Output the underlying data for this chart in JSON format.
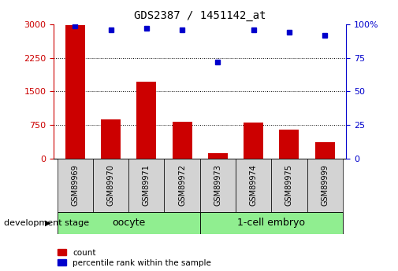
{
  "title": "GDS2387 / 1451142_at",
  "samples": [
    "GSM89969",
    "GSM89970",
    "GSM89971",
    "GSM89972",
    "GSM89973",
    "GSM89974",
    "GSM89975",
    "GSM89999"
  ],
  "counts": [
    2980,
    870,
    1720,
    820,
    120,
    810,
    650,
    360
  ],
  "percentile_ranks": [
    99,
    96,
    97,
    96,
    72,
    96,
    94,
    92
  ],
  "bar_color": "#CC0000",
  "dot_color": "#0000CC",
  "left_yaxis_ticks": [
    0,
    750,
    1500,
    2250,
    3000
  ],
  "left_yaxis_color": "#CC0000",
  "right_yaxis_ticks": [
    0,
    25,
    50,
    75,
    100
  ],
  "right_yaxis_color": "#0000CC",
  "grid_values": [
    750,
    1500,
    2250
  ],
  "stage_label": "development stage",
  "legend_count_label": "count",
  "legend_pct_label": "percentile rank within the sample",
  "bg_color": "#ffffff",
  "label_area_color": "#d3d3d3",
  "group_area_color": "#90EE90",
  "oocyte_label": "oocyte",
  "embryo_label": "1-cell embryo",
  "bar_width": 0.55,
  "title_fontsize": 10,
  "axis_tick_fontsize": 8,
  "sample_fontsize": 7,
  "group_fontsize": 9,
  "legend_fontsize": 7.5,
  "stage_fontsize": 8
}
